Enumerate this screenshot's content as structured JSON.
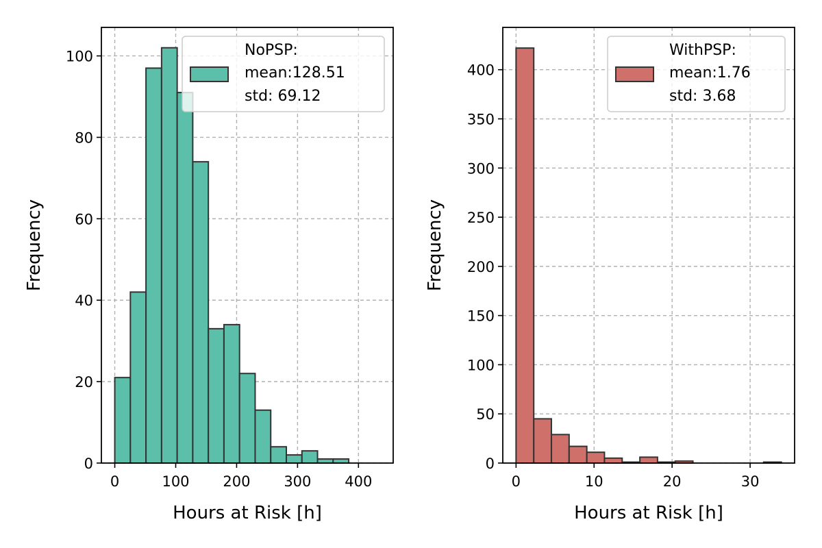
{
  "chart_data": [
    {
      "type": "histogram",
      "bins": [
        [
          0,
          25.6
        ],
        [
          25.6,
          51.2
        ],
        [
          51.2,
          76.8
        ],
        [
          76.8,
          102.4
        ],
        [
          102.4,
          128
        ],
        [
          128,
          153.6
        ],
        [
          153.6,
          179.2
        ],
        [
          179.2,
          204.8
        ],
        [
          204.8,
          230.4
        ],
        [
          230.4,
          256
        ],
        [
          256,
          281.6
        ],
        [
          281.6,
          307.2
        ],
        [
          307.2,
          332.8
        ],
        [
          332.8,
          358.4
        ],
        [
          358.4,
          384
        ],
        [
          384,
          409.6
        ],
        [
          409.6,
          435
        ]
      ],
      "values": [
        21,
        42,
        97,
        102,
        91,
        74,
        33,
        34,
        22,
        13,
        4,
        2,
        3,
        1,
        1,
        0,
        0
      ],
      "color": "#5bbfa9",
      "xlabel": "Hours at Risk [h]",
      "ylabel": "Frequency",
      "xlim": [
        -22,
        457
      ],
      "ylim": [
        0,
        107
      ],
      "xticks": [
        0,
        100,
        200,
        300,
        400
      ],
      "yticks": [
        0,
        20,
        40,
        60,
        80,
        100
      ],
      "grid": true,
      "legend_position": "upper-right",
      "legend_lines": [
        "NoPSP:",
        "mean:128.51",
        "std: 69.12"
      ]
    },
    {
      "type": "histogram",
      "bins": [
        [
          0,
          2.27
        ],
        [
          2.27,
          4.53
        ],
        [
          4.53,
          6.8
        ],
        [
          6.8,
          9.07
        ],
        [
          9.07,
          11.33
        ],
        [
          11.33,
          13.6
        ],
        [
          13.6,
          15.87
        ],
        [
          15.87,
          18.13
        ],
        [
          18.13,
          20.4
        ],
        [
          20.4,
          22.67
        ],
        [
          22.67,
          24.93
        ],
        [
          24.93,
          27.2
        ],
        [
          27.2,
          29.47
        ],
        [
          29.47,
          31.73
        ],
        [
          31.73,
          34.0
        ]
      ],
      "values": [
        422,
        45,
        29,
        17,
        11,
        5,
        1,
        6,
        1,
        2,
        0,
        0,
        0,
        0,
        1
      ],
      "color": "#d0706a",
      "xlabel": "Hours at Risk [h]",
      "ylabel": "Frequency",
      "xlim": [
        -1.7,
        35.7
      ],
      "ylim": [
        0,
        443
      ],
      "xticks": [
        0,
        10,
        20,
        30
      ],
      "yticks": [
        0,
        50,
        100,
        150,
        200,
        250,
        300,
        350,
        400
      ],
      "grid": true,
      "legend_position": "upper-right",
      "legend_lines": [
        "WithPSP:",
        "mean:1.76",
        "std: 3.68"
      ]
    }
  ]
}
